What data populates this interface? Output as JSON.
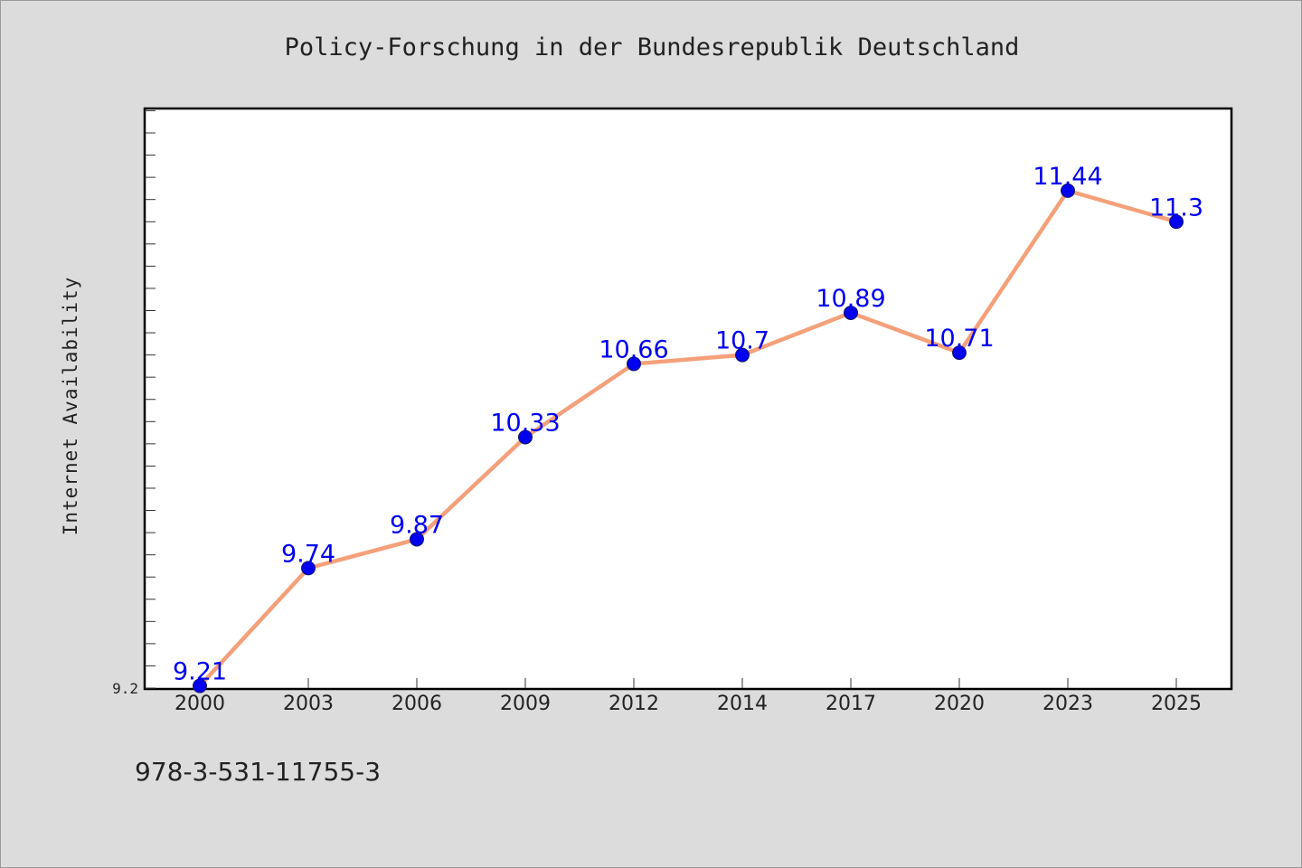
{
  "chart_data": {
    "type": "line",
    "title": "Policy-Forschung in der Bundesrepublik Deutschland",
    "xlabel": "",
    "ylabel": "Internet Availability",
    "categories": [
      "2000",
      "2003",
      "2006",
      "2009",
      "2012",
      "2014",
      "2017",
      "2020",
      "2023",
      "2025"
    ],
    "series": [
      {
        "values": [
          9.21,
          9.74,
          9.87,
          10.33,
          10.66,
          10.7,
          10.89,
          10.71,
          11.44,
          11.3
        ]
      }
    ],
    "data_labels": [
      "9.21",
      "9.74",
      "9.87",
      "10.33",
      "10.66",
      "10.7",
      "10.89",
      "10.71",
      "11.44",
      "11.3"
    ],
    "ylim": [
      9.2,
      11.81
    ],
    "y_tick_labels": [
      "9.2"
    ],
    "grid": false,
    "legend": "none",
    "colors": {
      "line": "#f4a07a",
      "marker": "#0000ee",
      "label": "#0000ee",
      "background": "#dcdcdc",
      "plot_background": "#ffffff"
    }
  },
  "footer": {
    "isbn": "978-3-531-11755-3"
  }
}
